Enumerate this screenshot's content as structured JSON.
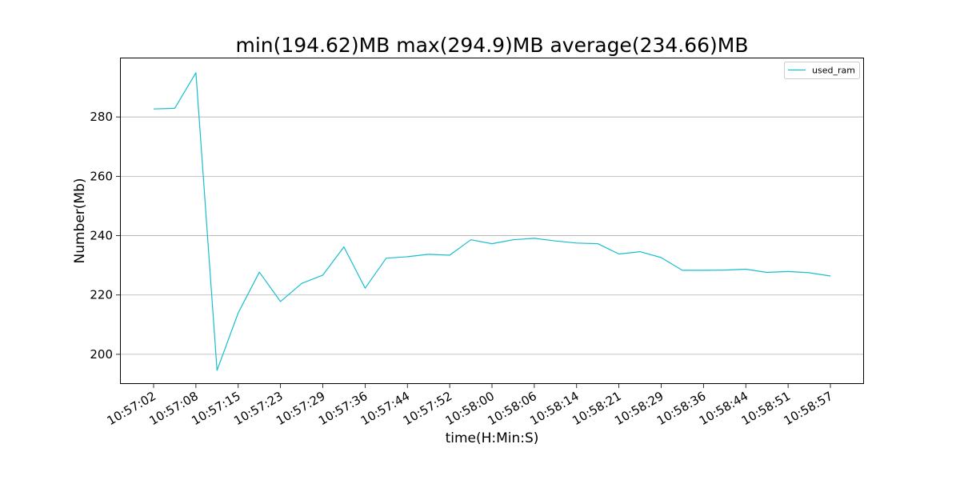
{
  "chart_data": {
    "type": "line",
    "title": "min(194.62)MB max(294.9)MB average(234.66)MB",
    "xlabel": "time(H:Min:S)",
    "ylabel": "Number(Mb)",
    "ylim": [
      190,
      300
    ],
    "y_ticks": [
      200,
      220,
      240,
      260,
      280
    ],
    "grid": "horizontal",
    "legend_position": "top-right",
    "x_tick_labels": [
      "10:57:02",
      "10:57:08",
      "10:57:15",
      "10:57:23",
      "10:57:29",
      "10:57:36",
      "10:57:44",
      "10:57:52",
      "10:58:00",
      "10:58:06",
      "10:58:14",
      "10:58:21",
      "10:58:29",
      "10:58:36",
      "10:58:44",
      "10:58:51",
      "10:58:57"
    ],
    "series": [
      {
        "name": "used_ram",
        "color": "#17becf",
        "values": [
          282.7,
          282.9,
          294.9,
          194.62,
          214.0,
          227.7,
          217.8,
          223.9,
          226.7,
          236.2,
          222.3,
          232.4,
          232.9,
          233.7,
          233.4,
          238.6,
          237.3,
          238.6,
          239.1,
          238.2,
          237.5,
          237.3,
          233.8,
          234.6,
          232.6,
          228.3,
          228.3,
          228.4,
          228.7,
          227.6,
          227.9,
          227.5,
          226.4
        ]
      }
    ]
  }
}
